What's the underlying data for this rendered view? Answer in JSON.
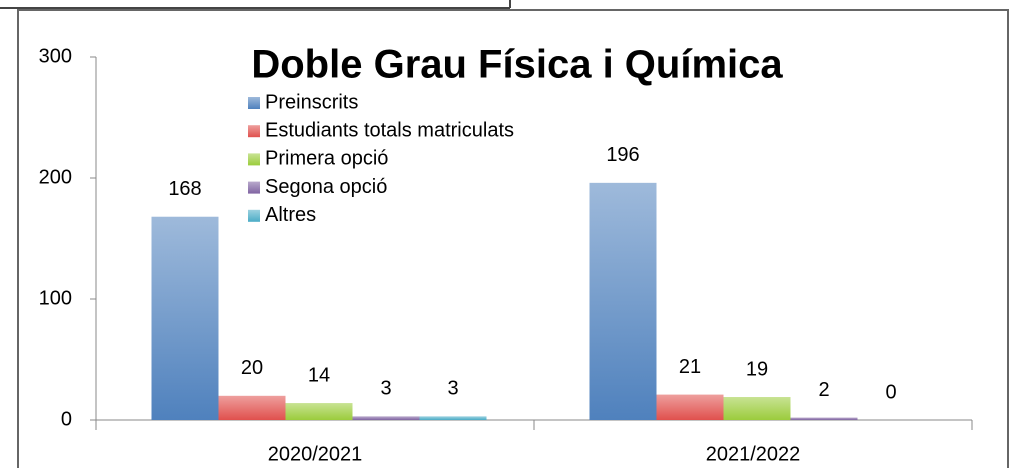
{
  "chart_data": {
    "type": "bar",
    "title": "Doble Grau Física i Química",
    "categories": [
      "2020/2021",
      "2021/2022"
    ],
    "series": [
      {
        "name": "Preinscrits",
        "color": "#4f81bd",
        "values": [
          168,
          196
        ]
      },
      {
        "name": "Estudiants totals matriculats",
        "color": "#e0504d",
        "values": [
          20,
          21
        ]
      },
      {
        "name": "Primera opció",
        "color": "#9bcc3c",
        "values": [
          14,
          19
        ]
      },
      {
        "name": "Segona opció",
        "color": "#8064a2",
        "values": [
          3,
          2
        ]
      },
      {
        "name": "Altres",
        "color": "#4bacc6",
        "values": [
          3,
          0
        ]
      }
    ],
    "ylim": [
      0,
      300
    ],
    "yticks": [
      0,
      100,
      200,
      300
    ],
    "legend": "top"
  }
}
